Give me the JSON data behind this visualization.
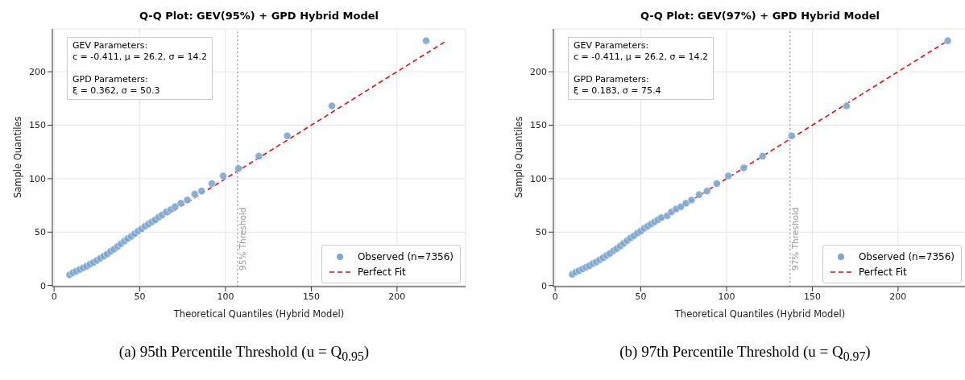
{
  "chart_data": [
    {
      "type": "scatter",
      "title": "Q-Q Plot: GEV(95%) + GPD Hybrid Model",
      "xlabel": "Theoretical Quantiles (Hybrid Model)",
      "ylabel": "Sample Quantiles",
      "xlim": [
        -1,
        240
      ],
      "ylim": [
        -1,
        240
      ],
      "xticks": [
        0,
        50,
        100,
        150,
        200
      ],
      "yticks": [
        0,
        50,
        100,
        150,
        200
      ],
      "grid": true,
      "legend": "bottom right",
      "series": [
        {
          "name": "Observed (n=7356)",
          "marker": "circle",
          "color": "#7ba7d0",
          "x": [
            9,
            11,
            13,
            15,
            17,
            19,
            21,
            23,
            25,
            27,
            29,
            31,
            33,
            35,
            37,
            39,
            41,
            43,
            45,
            47,
            49,
            51,
            53,
            55,
            57,
            59,
            61,
            63,
            65.4,
            68,
            70.6,
            74,
            77.7,
            82,
            86,
            92,
            98.6,
            107.6,
            119.4,
            136,
            162,
            217
          ],
          "values": [
            10,
            12,
            13.5,
            15,
            16.5,
            18,
            20,
            21.5,
            23.5,
            25.5,
            27.5,
            29.5,
            32,
            34,
            36.5,
            39,
            41.5,
            44,
            46,
            48.5,
            51,
            53,
            55.5,
            57.5,
            59.5,
            61.5,
            64,
            66,
            68.8,
            71,
            73.7,
            77,
            80,
            85.6,
            88.4,
            95.4,
            102.5,
            109.5,
            121,
            140,
            168,
            229
          ]
        },
        {
          "name": "Perfect Fit",
          "type": "line",
          "color": "#ff0000",
          "line_style": "dashed",
          "x": [
            10,
            229
          ],
          "values": [
            10,
            229
          ]
        }
      ],
      "ref_lines": [
        {
          "axis": "x",
          "value": 107,
          "label": "95% Threshold",
          "color": "#aaaaaa",
          "line_style": "dotted"
        }
      ],
      "annotations": [
        "GEV Parameters:\nc = -0.411, μ = 26.2, σ = 14.2\n\nGPD Parameters:\nξ = 0.362, σ = 50.3",
        "(a) 95th Percentile Threshold (u = Q$_{0.95}$)"
      ]
    },
    {
      "type": "scatter",
      "title": "Q-Q Plot: GEV(97%) + GPD Hybrid Model",
      "xlabel": "Theoretical Quantiles (Hybrid Model)",
      "ylabel": "Sample Quantiles",
      "xlim": [
        -1,
        240
      ],
      "ylim": [
        -1,
        240
      ],
      "xticks": [
        0,
        50,
        100,
        150,
        200
      ],
      "yticks": [
        0,
        50,
        100,
        150,
        200
      ],
      "grid": true,
      "legend": "bottom right",
      "series": [
        {
          "name": "Observed (n=7356)",
          "marker": "circle",
          "color": "#7ba7d0",
          "x": [
            10,
            12,
            14,
            16,
            18,
            20,
            22,
            24,
            26,
            28,
            30,
            32,
            34,
            36,
            38,
            40,
            42,
            44,
            46,
            48,
            50,
            52,
            54,
            56,
            58,
            60,
            62,
            65.4,
            67.8,
            70.6,
            73.4,
            76.3,
            79.6,
            84,
            88.6,
            94.3,
            101,
            110,
            121,
            138,
            170,
            229
          ],
          "values": [
            10.5,
            12.5,
            14,
            15.5,
            17,
            18.5,
            20.5,
            22,
            24,
            26,
            28,
            30,
            32.5,
            34.5,
            37,
            39.5,
            42,
            44.5,
            46.5,
            49,
            51,
            53.5,
            55.5,
            57.5,
            59.5,
            61.5,
            63.5,
            65.3,
            68.8,
            71.6,
            73.7,
            77,
            80,
            85,
            88.4,
            95.4,
            102.5,
            110,
            121,
            140,
            168,
            229
          ]
        },
        {
          "name": "Perfect Fit",
          "type": "line",
          "color": "#ff0000",
          "line_style": "dashed",
          "x": [
            10,
            229
          ],
          "values": [
            10,
            229
          ]
        }
      ],
      "ref_lines": [
        {
          "axis": "x",
          "value": 137,
          "label": "97% Threshold",
          "color": "#aaaaaa",
          "line_style": "dotted"
        }
      ],
      "annotations": [
        "GEV Parameters:\nc = -0.411, μ = 26.2, σ = 14.2\n\nGPD Parameters:\nξ = 0.183, σ = 75.4",
        "(b) 97th Percentile Threshold (u = Q$_{0.97}$)"
      ]
    }
  ]
}
